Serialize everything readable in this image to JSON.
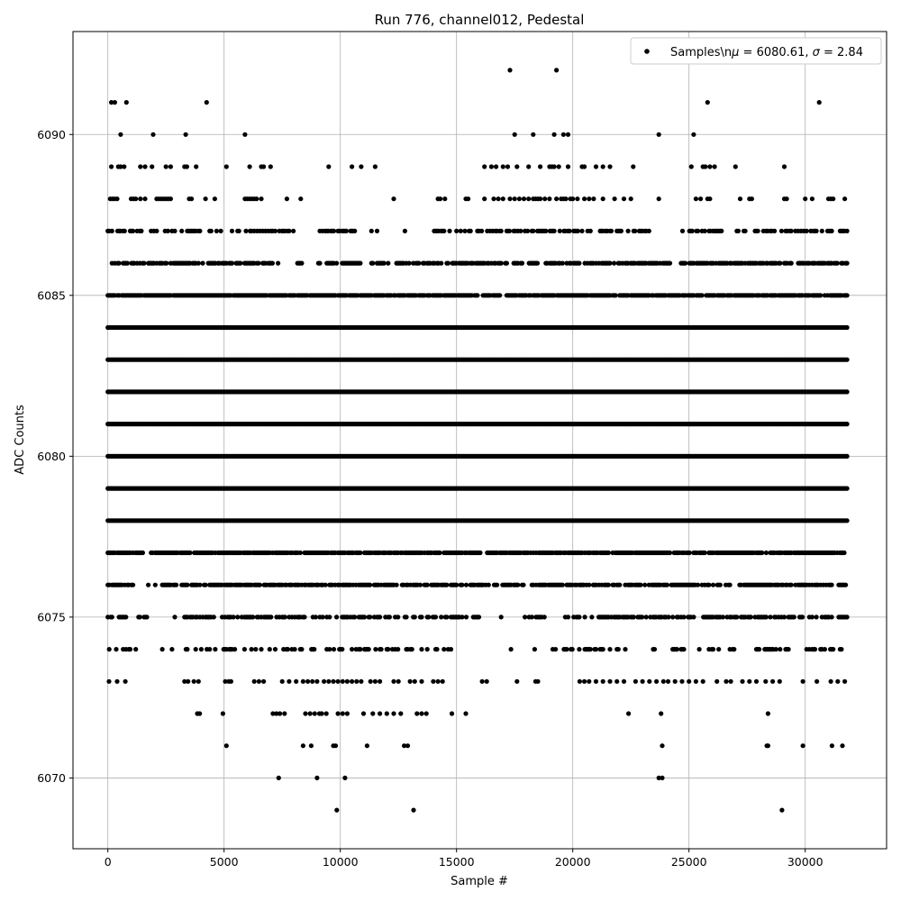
{
  "chart_data": {
    "type": "scatter",
    "title": "Run 776, channel012, Pedestal",
    "xlabel": "Sample #",
    "ylabel": "ADC Counts",
    "xlim": [
      -1500,
      33500
    ],
    "ylim": [
      6067.8,
      6093.2
    ],
    "xticks": [
      0,
      5000,
      10000,
      15000,
      20000,
      25000,
      30000
    ],
    "yticks": [
      6070,
      6075,
      6080,
      6085,
      6090
    ],
    "grid": true,
    "marker_color": "#000000",
    "legend": {
      "placement": "top-right",
      "entries": [
        {
          "label_prefix": "Samples\\n",
          "mu_symbol": "μ",
          "mu_text": " = 6080.61, ",
          "sigma_symbol": "σ",
          "sigma_text": " = 2.84"
        }
      ]
    },
    "n_samples": 31850,
    "series": [
      {
        "summary": {
          "mean": 6080.61,
          "sigma": 2.84
        },
        "levels": [
          {
            "y": 6069,
            "x": [
              9850,
              13150,
              29000
            ]
          },
          {
            "y": 6070,
            "x": [
              7350,
              9000,
              10200,
              23700,
              23850
            ]
          },
          {
            "y": 6071,
            "x": [
              5100,
              8400,
              8750,
              9700,
              9800,
              11150,
              12750,
              12900,
              23850,
              28350,
              28400,
              29900,
              31150,
              31600
            ]
          },
          {
            "y": 6072,
            "x": [
              3850,
              3950,
              4950,
              7100,
              7250,
              7400,
              7600,
              8500,
              8700,
              8900,
              9100,
              9200,
              9400,
              9900,
              10100,
              10300,
              11000,
              11400,
              11700,
              12000,
              12300,
              12600,
              13300,
              13500,
              13700,
              14800,
              15400,
              22400,
              23800,
              28400
            ]
          },
          {
            "y": 6073,
            "x": [
              50,
              400,
              750,
              3300,
              3450,
              3700,
              3900,
              5050,
              5200,
              5300,
              6300,
              6500,
              6700,
              7500,
              7800,
              8100,
              8400,
              8600,
              8800,
              9000,
              9300,
              9500,
              9700,
              9900,
              10100,
              10300,
              10500,
              10700,
              10900,
              11300,
              11500,
              11700,
              12300,
              12500,
              13000,
              13200,
              13500,
              14000,
              14200,
              14400,
              16100,
              16300,
              17600,
              18400,
              18500,
              20300,
              20500,
              20700,
              21000,
              21300,
              21600,
              21900,
              22200,
              22700,
              23000,
              23300,
              23600,
              23900,
              24100,
              24400,
              24700,
              25000,
              25300,
              25600,
              26200,
              26600,
              26800,
              27300,
              27600,
              27900,
              28300,
              28600,
              28900,
              29900,
              30500,
              31100,
              31400,
              31700
            ]
          }
        ],
        "dense_levels": [
          {
            "y": 6074,
            "density": 0.35,
            "gaps": [
              [
                1400,
                2300
              ],
              [
                2800,
                3300
              ],
              [
                14800,
                16900
              ],
              [
                17500,
                18200
              ],
              [
                18400,
                19000
              ],
              [
                22500,
                23400
              ],
              [
                27000,
                27600
              ],
              [
                29400,
                29900
              ]
            ]
          },
          {
            "y": 6075,
            "density": 0.55,
            "gaps": [
              [
                900,
                1300
              ],
              [
                1900,
                2700
              ],
              [
                3000,
                3200
              ],
              [
                16000,
                16800
              ],
              [
                17000,
                17900
              ],
              [
                18800,
                19600
              ]
            ]
          },
          {
            "y": 6076,
            "density": 0.7,
            "gaps": [
              [
                1100,
                1700
              ],
              [
                16400,
                16600
              ],
              [
                17900,
                18200
              ]
            ]
          },
          {
            "y": 6077,
            "density": 0.85,
            "gaps": [
              [
                1600,
                1800
              ],
              [
                16100,
                16300
              ]
            ]
          },
          {
            "y": 6078,
            "density": 1.0,
            "gaps": []
          },
          {
            "y": 6079,
            "density": 1.0,
            "gaps": []
          },
          {
            "y": 6080,
            "density": 1.0,
            "gaps": []
          },
          {
            "y": 6081,
            "density": 1.0,
            "gaps": []
          },
          {
            "y": 6082,
            "density": 1.0,
            "gaps": []
          },
          {
            "y": 6083,
            "density": 1.0,
            "gaps": []
          },
          {
            "y": 6084,
            "density": 1.0,
            "gaps": []
          },
          {
            "y": 6085,
            "density": 0.9,
            "gaps": [
              [
                16900,
                17100
              ]
            ]
          },
          {
            "y": 6086,
            "density": 0.7,
            "gaps": [
              [
                7500,
                8100
              ],
              [
                8500,
                8900
              ],
              [
                10900,
                11300
              ],
              [
                12100,
                12400
              ],
              [
                24200,
                24600
              ]
            ]
          },
          {
            "y": 6087,
            "density": 0.45,
            "gaps": [
              [
                4900,
                5300
              ],
              [
                8000,
                9100
              ],
              [
                10800,
                11300
              ],
              [
                11600,
                12500
              ],
              [
                13000,
                14000
              ],
              [
                23400,
                24700
              ]
            ]
          }
        ],
        "upper_levels": [
          {
            "y": 6088,
            "x": [
              100,
              200,
              300,
              400,
              1000,
              1100,
              1200,
              1400,
              1600,
              2100,
              2200,
              2300,
              2400,
              2500,
              2600,
              2700,
              3500,
              3600,
              4200,
              4600,
              5900,
              6000,
              6100,
              6200,
              6300,
              6400,
              6600,
              7700,
              8300,
              12300,
              14200,
              14300,
              14500,
              15400,
              15500,
              16200,
              16600,
              16800,
              17000,
              17300,
              17500,
              17700,
              17900,
              18100,
              18300,
              18400,
              18500,
              18600,
              18800,
              19000,
              19300,
              19500,
              19600,
              19700,
              19900,
              20000,
              20200,
              20500,
              20700,
              20900,
              21300,
              21800,
              22200,
              22500,
              23700,
              25300,
              25500,
              25800,
              25900,
              27200,
              27600,
              27700,
              29100,
              29200,
              30000,
              30300,
              31000,
              31100,
              31200,
              31700
            ]
          },
          {
            "y": 6089,
            "x": [
              150,
              450,
              550,
              700,
              1400,
              1600,
              1900,
              2500,
              2700,
              3300,
              3400,
              3800,
              5100,
              6100,
              6600,
              6700,
              7000,
              9500,
              10500,
              10900,
              11500,
              16200,
              16500,
              16700,
              17000,
              17200,
              17600,
              18100,
              18600,
              19000,
              19100,
              19200,
              19400,
              19800,
              20400,
              20500,
              21000,
              21300,
              21600,
              22600,
              25100,
              25600,
              25700,
              25900,
              26100,
              27000,
              29100
            ]
          },
          {
            "y": 6090,
            "x": [
              550,
              1950,
              3350,
              5900,
              17500,
              18300,
              19200,
              19600,
              19800,
              23700,
              25200
            ]
          },
          {
            "y": 6091,
            "x": [
              150,
              300,
              800,
              4250,
              25800,
              30600
            ]
          },
          {
            "y": 6092,
            "x": [
              17300,
              19300
            ]
          }
        ]
      }
    ]
  }
}
